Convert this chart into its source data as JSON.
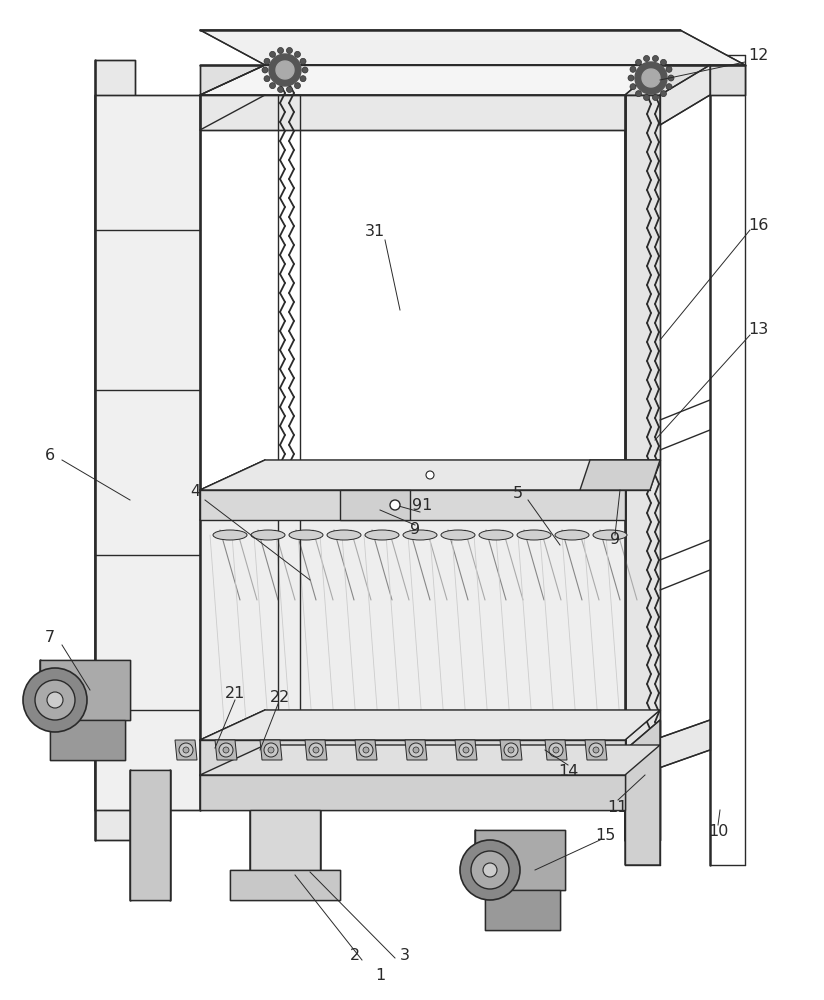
{
  "bg_color": "#ffffff",
  "line_color": "#2a2a2a",
  "line_width": 1.0,
  "thin_line": 0.5,
  "thick_line": 1.8,
  "fs": 11.5
}
